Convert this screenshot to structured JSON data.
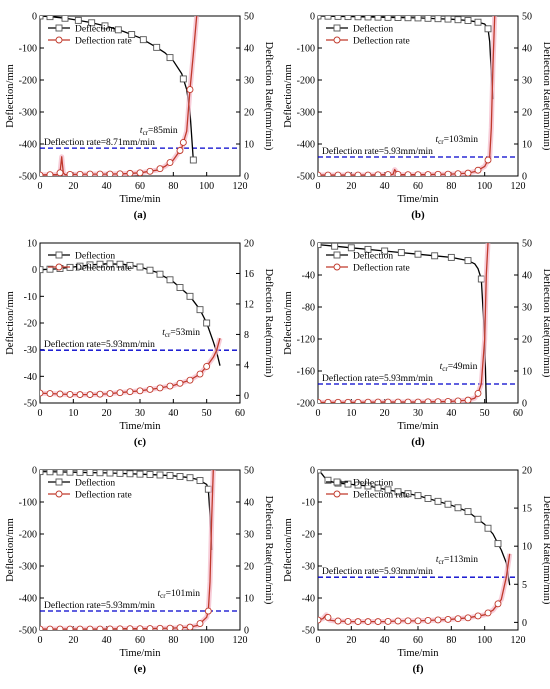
{
  "chart_data": [
    {
      "type": "line",
      "panel_label": "(a)",
      "xlabel": "Time/min",
      "ylabel_left": "Deflection/mm",
      "ylabel_right": "Deflection Rate(mm/min)",
      "xlim": [
        0,
        120
      ],
      "xticks": [
        0,
        20,
        40,
        60,
        80,
        100,
        120
      ],
      "ylim_left": [
        -500,
        0
      ],
      "yticks_left": [
        -500,
        -400,
        -300,
        -200,
        -100,
        0
      ],
      "ylim_right": [
        0,
        50
      ],
      "yticks_right": [
        0,
        10,
        20,
        30,
        40,
        50
      ],
      "legend": [
        "Deflection",
        "Deflection rate"
      ],
      "threshold": {
        "value": 8.71,
        "label": "Deflection rate=8.71mm/min"
      },
      "tcr": {
        "sub": "cr",
        "text": "=85min",
        "x": 85
      },
      "series": [
        {
          "name": "Deflection",
          "axis": "left",
          "color": "#000000",
          "x": [
            0,
            3,
            6,
            10,
            15,
            20,
            30,
            40,
            50,
            60,
            70,
            75,
            80,
            85,
            88,
            90,
            92
          ],
          "y": [
            0,
            -1,
            -2,
            -4,
            -7,
            -11,
            -20,
            -32,
            -48,
            -68,
            -98,
            -115,
            -140,
            -180,
            -230,
            -300,
            -450
          ],
          "marker_x": [
            0,
            6,
            15,
            23,
            31,
            39,
            47,
            55,
            62,
            70,
            78,
            86,
            92
          ]
        },
        {
          "name": "Deflection rate",
          "axis": "right",
          "color": "#c0392b",
          "x": [
            0,
            5,
            10,
            12,
            13,
            14,
            15,
            18,
            20,
            30,
            40,
            50,
            60,
            70,
            75,
            80,
            85,
            88,
            90,
            92,
            94
          ],
          "y": [
            0.3,
            0.4,
            0.4,
            1.0,
            6.0,
            1.0,
            0.4,
            0.5,
            0.5,
            0.6,
            0.6,
            0.7,
            1.0,
            1.8,
            3.0,
            5.0,
            8.71,
            14.0,
            27.0,
            38.0,
            50.0
          ],
          "marker_x": [
            0,
            6,
            12,
            18,
            24,
            30,
            36,
            42,
            48,
            54,
            60,
            66,
            72,
            78,
            84,
            86,
            90
          ]
        }
      ]
    },
    {
      "type": "line",
      "panel_label": "(b)",
      "xlabel": "Time/min",
      "ylabel_left": "Deflection/mm",
      "ylabel_right": "Deflection Rate(mm/min)",
      "xlim": [
        0,
        120
      ],
      "xticks": [
        0,
        20,
        40,
        60,
        80,
        100,
        120
      ],
      "ylim_left": [
        -500,
        0
      ],
      "yticks_left": [
        -500,
        -400,
        -300,
        -200,
        -100,
        0
      ],
      "ylim_right": [
        0,
        50
      ],
      "yticks_right": [
        0,
        10,
        20,
        30,
        40,
        50
      ],
      "legend": [
        "Deflection",
        "Deflection rate"
      ],
      "threshold": {
        "value": 5.93,
        "label": "Deflection rate=5.93mm/min"
      },
      "tcr": {
        "sub": "cr",
        "text": "=103min",
        "x": 103
      },
      "series": [
        {
          "name": "Deflection",
          "axis": "left",
          "color": "#000000",
          "x": [
            0,
            10,
            20,
            30,
            40,
            50,
            60,
            70,
            80,
            90,
            95,
            100,
            102,
            103,
            104,
            105
          ],
          "y": [
            0,
            -1,
            -2,
            -3,
            -4,
            -5,
            -6,
            -8,
            -10,
            -14,
            -18,
            -25,
            -40,
            -80,
            -180,
            -260
          ],
          "marker_x": [
            0,
            6,
            12,
            18,
            24,
            30,
            36,
            42,
            48,
            54,
            60,
            66,
            72,
            78,
            84,
            90,
            96,
            102
          ]
        },
        {
          "name": "Deflection rate",
          "axis": "right",
          "color": "#c0392b",
          "x": [
            0,
            10,
            20,
            30,
            40,
            45,
            46,
            48,
            50,
            60,
            70,
            80,
            90,
            95,
            100,
            102,
            103,
            104,
            105,
            106
          ],
          "y": [
            0.3,
            0.3,
            0.3,
            0.3,
            0.4,
            0.5,
            2.0,
            0.5,
            0.4,
            0.4,
            0.5,
            0.6,
            0.9,
            1.5,
            3.0,
            5.0,
            5.93,
            15.0,
            35.0,
            50.0
          ],
          "marker_x": [
            0,
            6,
            12,
            18,
            24,
            30,
            36,
            42,
            48,
            54,
            60,
            66,
            72,
            78,
            84,
            90,
            96,
            102
          ]
        }
      ]
    },
    {
      "type": "line",
      "panel_label": "(c)",
      "xlabel": "Time/min",
      "ylabel_left": "Deflection/mm",
      "ylabel_right": "Deflection Rate(mm/min)",
      "xlim": [
        0,
        60
      ],
      "xticks": [
        0,
        10,
        20,
        30,
        40,
        50,
        60
      ],
      "ylim_left": [
        -50,
        10
      ],
      "yticks_left": [
        -50,
        -40,
        -30,
        -20,
        -10,
        0,
        10
      ],
      "ylim_right": [
        -1,
        20
      ],
      "yticks_right": [
        0,
        4,
        8,
        12,
        16,
        20
      ],
      "legend": [
        "Deflection",
        "Deflection rate"
      ],
      "threshold": {
        "value": 5.93,
        "label": "Deflection rate=5.93mm/min"
      },
      "tcr": {
        "sub": "cr",
        "text": "=53min",
        "x": 53
      },
      "series": [
        {
          "name": "Deflection",
          "axis": "left",
          "color": "#000000",
          "x": [
            0,
            5,
            10,
            15,
            20,
            25,
            30,
            35,
            40,
            45,
            48,
            50,
            52,
            53,
            54
          ],
          "y": [
            0,
            0.3,
            1.0,
            1.8,
            2.2,
            2.0,
            1.0,
            -1.0,
            -4.5,
            -10.0,
            -15.0,
            -20.0,
            -27.0,
            -31.0,
            -36.0
          ],
          "marker_x": [
            0,
            3,
            6,
            9,
            12,
            15,
            18,
            21,
            24,
            27,
            30,
            33,
            36,
            39,
            42,
            45,
            48,
            50
          ]
        },
        {
          "name": "Deflection rate",
          "axis": "right",
          "color": "#c0392b",
          "x": [
            0,
            5,
            10,
            15,
            20,
            25,
            30,
            35,
            40,
            45,
            48,
            50,
            52,
            53,
            54
          ],
          "y": [
            0.3,
            0.2,
            0.1,
            0.1,
            0.2,
            0.4,
            0.6,
            0.9,
            1.3,
            2.0,
            2.8,
            3.8,
            5.0,
            5.93,
            7.5
          ],
          "marker_x": [
            0,
            3,
            6,
            9,
            12,
            15,
            18,
            21,
            24,
            27,
            30,
            33,
            36,
            39,
            42,
            45,
            48,
            50
          ]
        }
      ]
    },
    {
      "type": "line",
      "panel_label": "(d)",
      "xlabel": "Time/min",
      "ylabel_left": "Deflection/mm",
      "ylabel_right": "Deflection Rate(mm/min)",
      "xlim": [
        0,
        60
      ],
      "xticks": [
        0,
        10,
        20,
        30,
        40,
        50,
        60
      ],
      "ylim_left": [
        -200,
        0
      ],
      "yticks_left": [
        -200,
        -160,
        -120,
        -80,
        -40,
        0
      ],
      "ylim_right": [
        0,
        50
      ],
      "yticks_right": [
        0,
        10,
        20,
        30,
        40,
        50
      ],
      "legend": [
        "Deflection",
        "Deflection rate"
      ],
      "threshold": {
        "value": 5.93,
        "label": "Deflection rate=5.93mm/min"
      },
      "tcr": {
        "sub": "cr",
        "text": "=49min",
        "x": 49
      },
      "series": [
        {
          "name": "Deflection",
          "axis": "left",
          "color": "#000000",
          "x": [
            0,
            5,
            10,
            15,
            20,
            25,
            30,
            35,
            40,
            45,
            47,
            48,
            49,
            50,
            50.5
          ],
          "y": [
            -2,
            -4,
            -6,
            -8,
            -10,
            -12,
            -14,
            -16,
            -18,
            -22,
            -26,
            -32,
            -45,
            -120,
            -200
          ],
          "marker_x": [
            0,
            5,
            10,
            15,
            20,
            25,
            30,
            35,
            40,
            45,
            49
          ]
        },
        {
          "name": "Deflection rate",
          "axis": "right",
          "color": "#c0392b",
          "x": [
            0,
            10,
            20,
            30,
            40,
            45,
            47,
            48,
            49,
            50,
            50.5,
            51
          ],
          "y": [
            0.2,
            0.2,
            0.3,
            0.3,
            0.5,
            0.9,
            1.5,
            3.0,
            5.93,
            20.0,
            40.0,
            50.0
          ],
          "marker_x": [
            0,
            3,
            6,
            9,
            12,
            15,
            18,
            21,
            24,
            27,
            30,
            33,
            36,
            39,
            42,
            45,
            48
          ]
        }
      ]
    },
    {
      "type": "line",
      "panel_label": "(e)",
      "xlabel": "Time/min",
      "ylabel_left": "Deflection/mm",
      "ylabel_right": "Deflection Rate(mm/min)",
      "xlim": [
        0,
        120
      ],
      "xticks": [
        0,
        20,
        40,
        60,
        80,
        100,
        120
      ],
      "ylim_left": [
        -500,
        0
      ],
      "yticks_left": [
        -500,
        -400,
        -300,
        -200,
        -100,
        0
      ],
      "ylim_right": [
        0,
        50
      ],
      "yticks_right": [
        0,
        10,
        20,
        30,
        40,
        50
      ],
      "legend": [
        "Deflection",
        "Deflection rate"
      ],
      "threshold": {
        "value": 5.93,
        "label": "Deflection rate=5.93mm/min"
      },
      "tcr": {
        "sub": "cr",
        "text": "=101min",
        "x": 101
      },
      "series": [
        {
          "name": "Deflection",
          "axis": "left",
          "color": "#000000",
          "x": [
            0,
            10,
            20,
            30,
            40,
            50,
            60,
            70,
            80,
            90,
            95,
            100,
            101,
            102,
            103
          ],
          "y": [
            -5,
            -6,
            -7,
            -8,
            -9,
            -11,
            -13,
            -15,
            -18,
            -24,
            -30,
            -45,
            -60,
            -140,
            -250
          ],
          "marker_x": [
            0,
            6,
            12,
            18,
            24,
            30,
            36,
            42,
            48,
            54,
            60,
            66,
            72,
            78,
            84,
            90,
            96,
            101
          ]
        },
        {
          "name": "Deflection rate",
          "axis": "right",
          "color": "#c0392b",
          "x": [
            0,
            10,
            20,
            30,
            40,
            50,
            60,
            70,
            80,
            90,
            95,
            100,
            101,
            102,
            103,
            104
          ],
          "y": [
            0.3,
            0.3,
            0.3,
            0.3,
            0.3,
            0.4,
            0.4,
            0.5,
            0.6,
            0.9,
            1.5,
            4.0,
            5.93,
            15.0,
            35.0,
            50.0
          ],
          "marker_x": [
            0,
            6,
            12,
            18,
            24,
            30,
            36,
            42,
            48,
            54,
            60,
            66,
            72,
            78,
            84,
            90,
            96,
            101
          ]
        }
      ]
    },
    {
      "type": "line",
      "panel_label": "(f)",
      "xlabel": "Time/min",
      "ylabel_left": "Deflection/mm",
      "ylabel_right": "Deflection Rate(mm/min)",
      "xlim": [
        0,
        120
      ],
      "xticks": [
        0,
        20,
        40,
        60,
        80,
        100,
        120
      ],
      "ylim_left": [
        -50,
        0
      ],
      "yticks_left": [
        -50,
        -40,
        -30,
        -20,
        -10,
        0
      ],
      "ylim_right": [
        -1,
        20
      ],
      "yticks_right": [
        0,
        5,
        10,
        15,
        20
      ],
      "legend": [
        "Deflection",
        "Deflection rate"
      ],
      "threshold": {
        "value": 5.93,
        "label": "Deflection rate=5.93mm/min"
      },
      "tcr": {
        "sub": "cr",
        "text": "=113min",
        "x": 113
      },
      "series": [
        {
          "name": "Deflection",
          "axis": "left",
          "color": "#000000",
          "x": [
            0,
            2,
            5,
            10,
            20,
            30,
            40,
            50,
            60,
            70,
            80,
            90,
            100,
            105,
            110,
            113,
            115
          ],
          "y": [
            0,
            -1,
            -3,
            -4,
            -4.5,
            -5,
            -6,
            -7,
            -8,
            -9.5,
            -11,
            -13,
            -17,
            -20,
            -25,
            -29,
            -36
          ],
          "marker_x": [
            0,
            6,
            12,
            18,
            24,
            30,
            36,
            42,
            48,
            54,
            60,
            66,
            72,
            78,
            84,
            90,
            96,
            102,
            108
          ]
        },
        {
          "name": "Deflection rate",
          "axis": "right",
          "color": "#c0392b",
          "x": [
            0,
            3,
            5,
            7,
            10,
            20,
            30,
            40,
            50,
            60,
            70,
            80,
            90,
            100,
            105,
            110,
            113,
            115
          ],
          "y": [
            0.3,
            0.5,
            1.0,
            0.3,
            0.2,
            0.1,
            0.1,
            0.1,
            0.2,
            0.2,
            0.3,
            0.4,
            0.6,
            1.0,
            1.6,
            3.0,
            5.93,
            9.0
          ],
          "marker_x": [
            0,
            6,
            12,
            18,
            24,
            30,
            36,
            42,
            48,
            54,
            60,
            66,
            72,
            78,
            84,
            90,
            96,
            102,
            108
          ]
        }
      ]
    }
  ]
}
